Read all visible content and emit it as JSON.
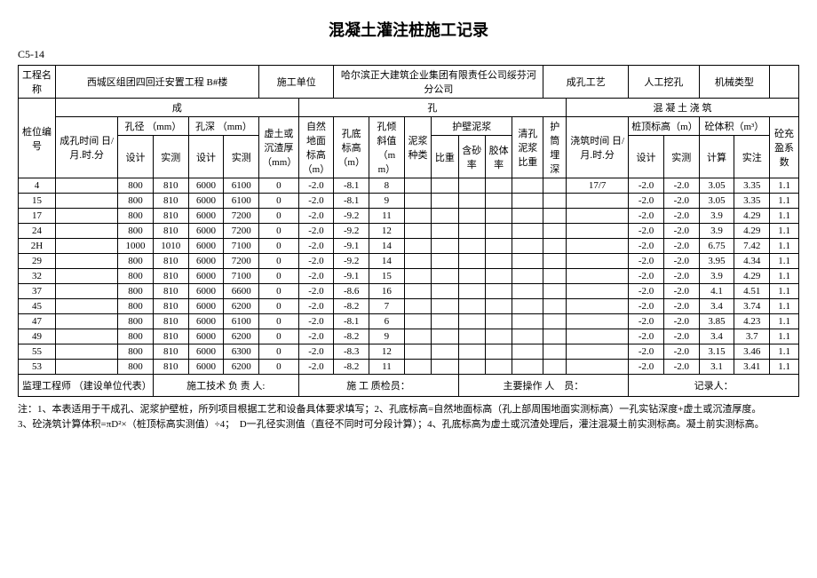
{
  "title": "混凝土灌注桩施工记录",
  "formCode": "C5-14",
  "headerFields": {
    "projectNameLabel": "工程名称",
    "projectName": "西城区组团四回迁安置工程 B#楼",
    "constructionUnitLabel": "施工单位",
    "constructionUnit": "哈尔滨正大建筑企业集团有限责任公司绥芬河分公司",
    "holeMethodLabel": "成孔工艺",
    "holeMethod": "人工挖孔",
    "machineTypeLabel": "机械类型",
    "machineType": ""
  },
  "sectionHeaders": {
    "hole": "成",
    "hole2": "孔",
    "concrete": "混 凝 土 浇 筑"
  },
  "colHeaders": {
    "pileNo": "桩位编号",
    "holeTime": "成孔时间\n日/月.时.分",
    "holeDia": "孔径\n（mm）",
    "holeDepth": "孔深\n（mm）",
    "sedimentThick": "虚土或沉渣厚（mm）",
    "groundElev": "自然地面标高（m）",
    "bottomElev": "孔底标高（m）",
    "inclination": "孔倾斜值（mm）",
    "mudType": "泥浆种类",
    "wallMud": "护壁泥浆",
    "cleanMudRatio": "清孔泥浆比重",
    "casingDepth": "护筒埋深",
    "pourTime": "浇筑时间\n日/月.时.分",
    "topElev": "桩顶标高（m）",
    "concreteVol": "砼体积（m³）",
    "fillCoef": "砼充盈系数",
    "design": "设计",
    "measured": "实测",
    "propRatio": "比重",
    "sandRate": "含砂率",
    "gelRate": "胶体率",
    "calc": "计算",
    "actual": "实注"
  },
  "rows": [
    {
      "no": "4",
      "dia_d": "800",
      "dia_m": "810",
      "dep_d": "6000",
      "dep_m": "6100",
      "sed": "0",
      "gnd": "-2.0",
      "bot": "-8.1",
      "inc": "8",
      "pour": "17/7",
      "top_d": "-2.0",
      "top_m": "-2.0",
      "vol_c": "3.05",
      "vol_a": "3.35",
      "coef": "1.1"
    },
    {
      "no": "15",
      "dia_d": "800",
      "dia_m": "810",
      "dep_d": "6000",
      "dep_m": "6100",
      "sed": "0",
      "gnd": "-2.0",
      "bot": "-8.1",
      "inc": "9",
      "pour": "",
      "top_d": "-2.0",
      "top_m": "-2.0",
      "vol_c": "3.05",
      "vol_a": "3.35",
      "coef": "1.1"
    },
    {
      "no": "17",
      "dia_d": "800",
      "dia_m": "810",
      "dep_d": "6000",
      "dep_m": "7200",
      "sed": "0",
      "gnd": "-2.0",
      "bot": "-9.2",
      "inc": "11",
      "pour": "",
      "top_d": "-2.0",
      "top_m": "-2.0",
      "vol_c": "3.9",
      "vol_a": "4.29",
      "coef": "1.1"
    },
    {
      "no": "24",
      "dia_d": "800",
      "dia_m": "810",
      "dep_d": "6000",
      "dep_m": "7200",
      "sed": "0",
      "gnd": "-2.0",
      "bot": "-9.2",
      "inc": "12",
      "pour": "",
      "top_d": "-2.0",
      "top_m": "-2.0",
      "vol_c": "3.9",
      "vol_a": "4.29",
      "coef": "1.1"
    },
    {
      "no": "2H",
      "dia_d": "1000",
      "dia_m": "1010",
      "dep_d": "6000",
      "dep_m": "7100",
      "sed": "0",
      "gnd": "-2.0",
      "bot": "-9.1",
      "inc": "14",
      "pour": "",
      "top_d": "-2.0",
      "top_m": "-2.0",
      "vol_c": "6.75",
      "vol_a": "7.42",
      "coef": "1.1"
    },
    {
      "no": "29",
      "dia_d": "800",
      "dia_m": "810",
      "dep_d": "6000",
      "dep_m": "7200",
      "sed": "0",
      "gnd": "-2.0",
      "bot": "-9.2",
      "inc": "14",
      "pour": "",
      "top_d": "-2.0",
      "top_m": "-2.0",
      "vol_c": "3.95",
      "vol_a": "4.34",
      "coef": "1.1"
    },
    {
      "no": "32",
      "dia_d": "800",
      "dia_m": "810",
      "dep_d": "6000",
      "dep_m": "7100",
      "sed": "0",
      "gnd": "-2.0",
      "bot": "-9.1",
      "inc": "15",
      "pour": "",
      "top_d": "-2.0",
      "top_m": "-2.0",
      "vol_c": "3.9",
      "vol_a": "4.29",
      "coef": "1.1"
    },
    {
      "no": "37",
      "dia_d": "800",
      "dia_m": "810",
      "dep_d": "6000",
      "dep_m": "6600",
      "sed": "0",
      "gnd": "-2.0",
      "bot": "-8.6",
      "inc": "16",
      "pour": "",
      "top_d": "-2.0",
      "top_m": "-2.0",
      "vol_c": "4.1",
      "vol_a": "4.51",
      "coef": "1.1"
    },
    {
      "no": "45",
      "dia_d": "800",
      "dia_m": "810",
      "dep_d": "6000",
      "dep_m": "6200",
      "sed": "0",
      "gnd": "-2.0",
      "bot": "-8.2",
      "inc": "7",
      "pour": "",
      "top_d": "-2.0",
      "top_m": "-2.0",
      "vol_c": "3.4",
      "vol_a": "3.74",
      "coef": "1.1"
    },
    {
      "no": "47",
      "dia_d": "800",
      "dia_m": "810",
      "dep_d": "6000",
      "dep_m": "6100",
      "sed": "0",
      "gnd": "-2.0",
      "bot": "-8.1",
      "inc": "6",
      "pour": "",
      "top_d": "-2.0",
      "top_m": "-2.0",
      "vol_c": "3.85",
      "vol_a": "4.23",
      "coef": "1.1"
    },
    {
      "no": "49",
      "dia_d": "800",
      "dia_m": "810",
      "dep_d": "6000",
      "dep_m": "6200",
      "sed": "0",
      "gnd": "-2.0",
      "bot": "-8.2",
      "inc": "9",
      "pour": "",
      "top_d": "-2.0",
      "top_m": "-2.0",
      "vol_c": "3.4",
      "vol_a": "3.7",
      "coef": "1.1"
    },
    {
      "no": "55",
      "dia_d": "800",
      "dia_m": "810",
      "dep_d": "6000",
      "dep_m": "6300",
      "sed": "0",
      "gnd": "-2.0",
      "bot": "-8.3",
      "inc": "12",
      "pour": "",
      "top_d": "-2.0",
      "top_m": "-2.0",
      "vol_c": "3.15",
      "vol_a": "3.46",
      "coef": "1.1"
    },
    {
      "no": "53",
      "dia_d": "800",
      "dia_m": "810",
      "dep_d": "6000",
      "dep_m": "6200",
      "sed": "0",
      "gnd": "-2.0",
      "bot": "-8.2",
      "inc": "11",
      "pour": "",
      "top_d": "-2.0",
      "top_m": "-2.0",
      "vol_c": "3.1",
      "vol_a": "3.41",
      "coef": "1.1"
    }
  ],
  "footer": {
    "supervisorLabel": "监理工程师\n（建设单位代表）",
    "techLeadLabel": "施工技术\n负 责 人:",
    "inspectorLabel": "施 工\n质检员：",
    "operatorLabel": "主要操作\n人　员：",
    "recorderLabel": "记录人："
  },
  "notes": {
    "line1": "注：1、本表适用于干成孔、泥浆护壁桩，所列项目根据工艺和设备具体要求填写；2、孔底标高=自然地面标高（孔上部周围地面实测标高）一孔实钻深度+虚土或沉渣厚度。",
    "line2": "3、砼浇筑计算体积=πD²×（桩顶标高实测值）÷4；　D一孔径实测值（直径不同时可分段计算）；4、孔底标高为虚土或沉渣处理后，灌注混凝土前实测标高。凝土前实测标高。"
  }
}
